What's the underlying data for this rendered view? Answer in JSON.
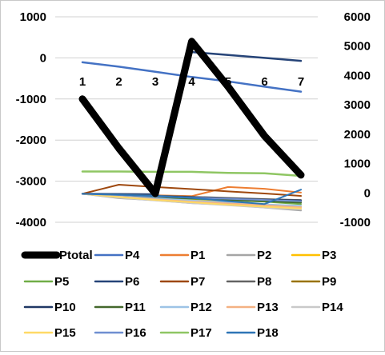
{
  "chart_data": {
    "type": "line",
    "title": "",
    "xlabel": "",
    "ylabel": "",
    "categories": [
      "1",
      "2",
      "3",
      "4",
      "5",
      "6",
      "7"
    ],
    "y_left": {
      "min": -4000,
      "max": 1000,
      "ticks": [
        "1000",
        "0",
        "-1000",
        "-2000",
        "-3000",
        "-4000"
      ]
    },
    "y_right": {
      "min": -1000,
      "max": 6000,
      "ticks": [
        "6000",
        "5000",
        "4000",
        "3000",
        "2000",
        "1000",
        "0",
        "-1000"
      ]
    },
    "grid": "horizontal",
    "legend_position": "bottom",
    "series": [
      {
        "name": "Ptotal",
        "axis": "left",
        "color": "#000000",
        "width": 9,
        "values": [
          -1000,
          -2200,
          -3300,
          400,
          -700,
          -1900,
          -2850
        ]
      },
      {
        "name": "P4",
        "axis": "right",
        "color": "#4472C4",
        "width": 2.5,
        "values": [
          4450,
          4300,
          4130,
          3950,
          3800,
          3620,
          3450
        ]
      },
      {
        "name": "P1",
        "axis": "right",
        "color": "#ED7D31",
        "width": 2,
        "values": [
          -30,
          -50,
          -80,
          -110,
          200,
          140,
          10
        ]
      },
      {
        "name": "P2",
        "axis": "right",
        "color": "#A5A5A5",
        "width": 2,
        "values": [
          -30,
          -180,
          -250,
          -350,
          -400,
          -500,
          -600
        ]
      },
      {
        "name": "P3",
        "axis": "right",
        "color": "#FFC000",
        "width": 2,
        "values": [
          -30,
          -110,
          -180,
          -240,
          -320,
          -400,
          -450
        ]
      },
      {
        "name": "P5",
        "axis": "right",
        "color": "#70AD47",
        "width": 2,
        "values": [
          -30,
          -100,
          -150,
          -200,
          -250,
          -300,
          -380
        ]
      },
      {
        "name": "P6",
        "axis": "right",
        "color": "#264478",
        "width": 2.5,
        "values": [
          -30,
          -40,
          -50,
          4800,
          4700,
          4600,
          4500
        ]
      },
      {
        "name": "P7",
        "axis": "right",
        "color": "#9E480E",
        "width": 2,
        "values": [
          -30,
          280,
          200,
          130,
          50,
          -20,
          -100
        ]
      },
      {
        "name": "P8",
        "axis": "right",
        "color": "#636363",
        "width": 2,
        "values": [
          -30,
          -60,
          -90,
          -130,
          -170,
          -210,
          -240
        ]
      },
      {
        "name": "P9",
        "axis": "right",
        "color": "#997300",
        "width": 2,
        "values": [
          -30,
          -80,
          -130,
          -180,
          -220,
          -270,
          -300
        ]
      },
      {
        "name": "P10",
        "axis": "right",
        "color": "#203864",
        "width": 2,
        "values": [
          -30,
          -70,
          -110,
          -150,
          -190,
          -230,
          -260
        ]
      },
      {
        "name": "P11",
        "axis": "right",
        "color": "#43682B",
        "width": 2,
        "values": [
          -30,
          -90,
          -140,
          -190,
          -230,
          -280,
          -330
        ]
      },
      {
        "name": "P12",
        "axis": "right",
        "color": "#9DC3E6",
        "width": 2,
        "values": [
          -30,
          -120,
          -190,
          -260,
          -330,
          -390,
          -440
        ]
      },
      {
        "name": "P13",
        "axis": "right",
        "color": "#F4B183",
        "width": 2,
        "values": [
          -30,
          -130,
          -220,
          -300,
          -360,
          -420,
          -490
        ]
      },
      {
        "name": "P14",
        "axis": "right",
        "color": "#C9C9C9",
        "width": 2,
        "values": [
          -30,
          -160,
          -260,
          -350,
          -420,
          -500,
          -560
        ]
      },
      {
        "name": "P15",
        "axis": "right",
        "color": "#FFD966",
        "width": 2,
        "values": [
          -30,
          -140,
          -240,
          -320,
          -400,
          -470,
          -530
        ]
      },
      {
        "name": "P16",
        "axis": "right",
        "color": "#6F8FD1",
        "width": 2,
        "values": [
          -30,
          -70,
          -120,
          -160,
          -200,
          -240,
          -280
        ]
      },
      {
        "name": "P17",
        "axis": "right",
        "color": "#8FC663",
        "width": 2.5,
        "values": [
          730,
          730,
          720,
          720,
          680,
          670,
          580
        ]
      },
      {
        "name": "P18",
        "axis": "right",
        "color": "#2E75B6",
        "width": 2,
        "values": [
          -30,
          -60,
          -100,
          -170,
          -280,
          -380,
          110
        ]
      }
    ]
  }
}
